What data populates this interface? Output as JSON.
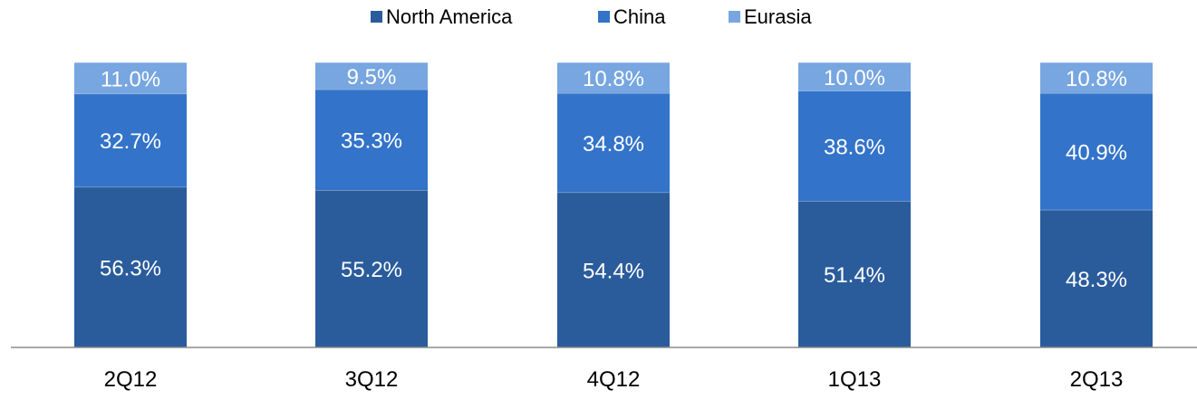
{
  "chart_data": {
    "type": "bar",
    "stacked": true,
    "categories": [
      "2Q12",
      "3Q12",
      "4Q12",
      "1Q13",
      "2Q13"
    ],
    "series": [
      {
        "name": "North America",
        "color": "#2a5c9c",
        "values": [
          56.3,
          55.2,
          54.4,
          51.4,
          48.3
        ],
        "labels": [
          "56.3%",
          "55.2%",
          "54.4%",
          "51.4%",
          "48.3%"
        ]
      },
      {
        "name": "China",
        "color": "#3373c9",
        "values": [
          32.7,
          35.3,
          34.8,
          38.6,
          40.9
        ],
        "labels": [
          "32.7%",
          "35.3%",
          "34.8%",
          "38.6%",
          "40.9%"
        ]
      },
      {
        "name": "Eurasia",
        "color": "#77a6e0",
        "values": [
          11.0,
          9.5,
          10.8,
          10.0,
          10.8
        ],
        "labels": [
          "11.0%",
          "9.5%",
          "10.8%",
          "10.0%",
          "10.8%"
        ]
      }
    ],
    "ylim": [
      0,
      100
    ],
    "legend_position": "top-center",
    "grid": false
  }
}
